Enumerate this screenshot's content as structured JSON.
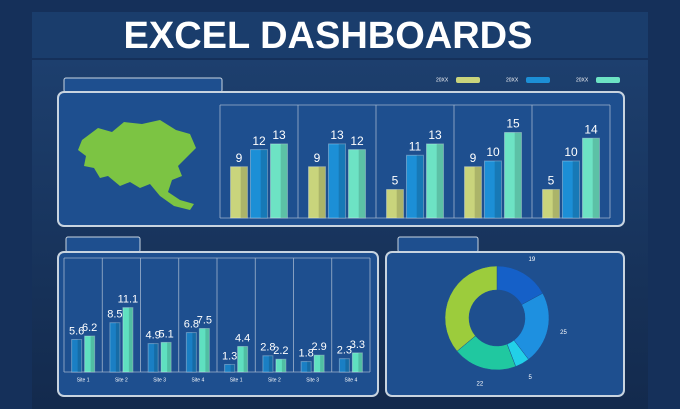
{
  "title": "EXCEL DASHBOARDS",
  "chart_data": [
    {
      "type": "bar",
      "categories": [
        null,
        null,
        null,
        null,
        null
      ],
      "series": [
        {
          "name": "20XX",
          "color": "#c9d47c",
          "values": [
            9,
            9,
            5,
            9,
            5
          ]
        },
        {
          "name": "20XX",
          "color": "#1c8fd6",
          "values": [
            12,
            13,
            11,
            10,
            10
          ]
        },
        {
          "name": "20XX",
          "color": "#6de3c4",
          "values": [
            13,
            12,
            13,
            15,
            14
          ]
        }
      ],
      "legend": "top-right"
    },
    {
      "type": "bar",
      "categories": [
        "Site 1",
        "Site 2",
        "Site 3",
        "Site 4",
        "Site 1",
        "Site 2",
        "Site 3",
        "Site 4"
      ],
      "series": [
        {
          "color": "#1a7fc4",
          "values": [
            5.6,
            8.5,
            4.9,
            6.8,
            1.3,
            2.8,
            1.8,
            2.3
          ]
        },
        {
          "color": "#5fe0c0",
          "values": [
            6.2,
            11.1,
            5.1,
            7.5,
            4.4,
            2.2,
            2.9,
            3.3
          ]
        }
      ]
    },
    {
      "type": "pie",
      "donut": true,
      "values": [
        19,
        25,
        5,
        22,
        40
      ],
      "value_labels": [
        "19",
        "25",
        "5",
        "22",
        null
      ],
      "colors": [
        "#1560c8",
        "#1e90e0",
        "#22d0e8",
        "#20c8a0",
        "#9ccc3c"
      ]
    }
  ]
}
